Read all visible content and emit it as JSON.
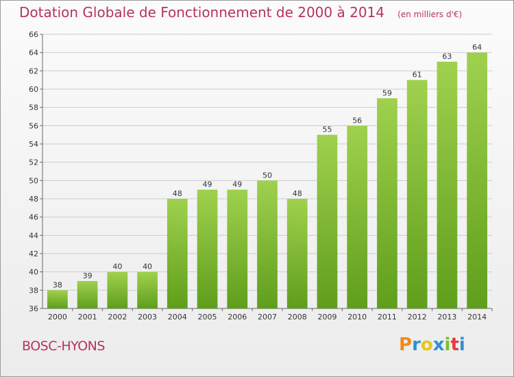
{
  "header": {
    "title": "Dotation Globale de Fonctionnement de 2000 à 2014",
    "subtitle": "(en milliers d'€)"
  },
  "footer": {
    "commune": "BOSC-HYONS",
    "brand": "Proxiti",
    "brand_colors": [
      "#f08a1c",
      "#2f8fd6",
      "#e8c51b",
      "#2f8fd6",
      "#7fbf2a",
      "#e53b3b",
      "#2f8fd6"
    ]
  },
  "colors": {
    "bar_light": "#9fd14e",
    "bar_dark": "#5f9e1b",
    "title": "#b5335f",
    "grid": "#cccccc"
  },
  "chart_data": {
    "type": "bar",
    "title": "Dotation Globale de Fonctionnement de 2000 à 2014",
    "subtitle": "(en milliers d'€)",
    "categories": [
      "2000",
      "2001",
      "2002",
      "2003",
      "2004",
      "2005",
      "2006",
      "2007",
      "2008",
      "2009",
      "2010",
      "2011",
      "2012",
      "2013",
      "2014"
    ],
    "values": [
      38,
      39,
      40,
      40,
      48,
      49,
      49,
      50,
      48,
      55,
      56,
      59,
      61,
      63,
      64
    ],
    "ylim": [
      36,
      66
    ],
    "yticks": [
      36,
      38,
      40,
      42,
      44,
      46,
      48,
      50,
      52,
      54,
      56,
      58,
      60,
      62,
      64,
      66
    ],
    "grid": true,
    "data_labels": true
  }
}
